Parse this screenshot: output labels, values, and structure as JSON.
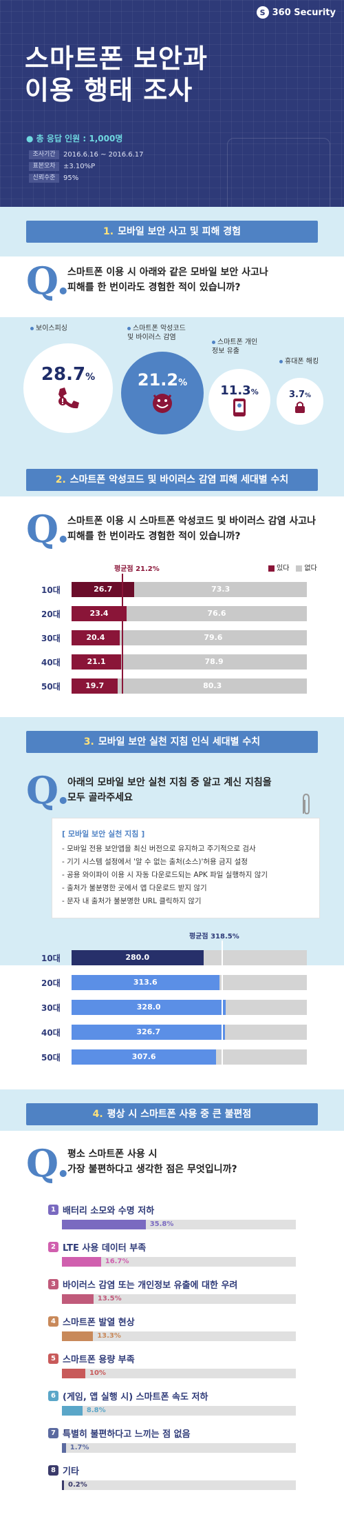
{
  "brand": "360 Security",
  "title_line1": "스마트폰 보안과",
  "title_line2": "이용 행태 조사",
  "respondents": "총 응답 인원 : 1,000명",
  "meta": [
    {
      "k": "조사기간",
      "v": "2016.6.16 ~ 2016.6.17"
    },
    {
      "k": "표본오차",
      "v": "±3.10%P"
    },
    {
      "k": "신뢰수준",
      "v": "95%"
    }
  ],
  "colors": {
    "header": "#2e3a78",
    "accent": "#4f82c4",
    "band": "#d6ecf5",
    "yes": "#8a1538",
    "no": "#c9c9c9",
    "navy": "#27306a",
    "blue": "#5b8fe6"
  },
  "s1": {
    "num": "1.",
    "title": "모바일 보안 사고 및 피해 경험",
    "q1": "스마트폰 이용 시 아래와 같은 모바일 보안 사고나",
    "q2": "피해를 한 번이라도 경험한 적이 있습니까?",
    "items": [
      {
        "label": "보이스피싱",
        "value": "28.7",
        "icon": "phone-alert-icon"
      },
      {
        "label": "스마트폰 악성코드 및 바이러스 감염",
        "value": "21.2",
        "icon": "virus-icon"
      },
      {
        "label": "스마트폰 개인정보 유출",
        "value": "11.3",
        "icon": "smartphone-icon"
      },
      {
        "label": "휴대폰 해킹",
        "value": "3.7",
        "icon": "lock-icon"
      }
    ],
    "pct": "%"
  },
  "s2": {
    "num": "2.",
    "title": "스마트폰 악성코드 및 바이러스 감염 피해 세대별 수치",
    "q1": "스마트폰 이용 시 스마트폰 악성코드 및 바이러스 감염 사고나",
    "q2": "피해를 한 번이라도 경험한 적이 있습니까?",
    "avg_label": "평균점 21.2%",
    "legend_yes": "있다",
    "legend_no": "없다"
  },
  "s3": {
    "num": "3.",
    "title": "모바일 보안 실천 지침 인식 세대별 수치",
    "q1": "아래의 모바일 보안 실천 지침 중 알고 계신 지침을",
    "q2": "모두 골라주세요",
    "guide_title": "[ 모바일 보안 실천 지침 ]",
    "guide": [
      "모바일 전용 보안앱을 최신 버전으로 유지하고 주기적으로 검사",
      "기기 시스템 설정에서 '알 수 없는 출처(소스)'허용 금지 설정",
      "공용 와이파이 이용 시 자동 다운로드되는 APK 파일 실행하지 않기",
      "출처가 불분명한 곳에서 앱 다운로드 받지 않기",
      "문자 내 출처가 불분명한 URL 클릭하지 않기"
    ],
    "avg_label": "평균점 318.5%"
  },
  "s4": {
    "num": "4.",
    "title": "평상 시 스마트폰 사용 중 큰 불편점",
    "q1": "평소 스마트폰 사용 시",
    "q2": "가장 불편하다고 생각한 점은 무엇입니까?"
  },
  "chart_data": [
    {
      "type": "bar",
      "title": "스마트폰 악성코드 및 바이러스 감염 피해 세대별 수치",
      "categories": [
        "10대",
        "20대",
        "30대",
        "40대",
        "50대"
      ],
      "series": [
        {
          "name": "있다",
          "values": [
            26.7,
            23.4,
            20.4,
            21.1,
            19.7
          ]
        },
        {
          "name": "없다",
          "values": [
            73.3,
            76.6,
            79.6,
            78.9,
            80.3
          ]
        }
      ],
      "average": 21.2,
      "stacked": true,
      "orientation": "horizontal",
      "ylim": [
        0,
        100
      ]
    },
    {
      "type": "bar",
      "title": "모바일 보안 실천 지침 인식 세대별 수치",
      "categories": [
        "10대",
        "20대",
        "30대",
        "40대",
        "50대"
      ],
      "values": [
        280.0,
        313.6,
        328.0,
        326.7,
        307.6
      ],
      "average": 318.5,
      "orientation": "horizontal",
      "ylim": [
        0,
        500
      ]
    },
    {
      "type": "bar",
      "title": "평상 시 스마트폰 사용 중 큰 불편점",
      "categories": [
        "배터리 소모와 수명 저하",
        "LTE 사용 데이터 부족",
        "바이러스 감염 또는 개인정보 유출에 대한 우려",
        "스마트폰 발열 현상",
        "스마트폰 용량 부족",
        "(게임, 앱 실행 시) 스마트폰 속도 저하",
        "특별히 불편하다고 느끼는 점 없음",
        "기타"
      ],
      "values": [
        35.8,
        16.7,
        13.5,
        13.3,
        10,
        8.8,
        1.7,
        0.2
      ],
      "labels": [
        "35.8%",
        "16.7%",
        "13.5%",
        "13.3%",
        "10%",
        "8.8%",
        "1.7%",
        "0.2%"
      ],
      "colors": [
        "#7a6ac0",
        "#d05fae",
        "#c05a7a",
        "#c8895a",
        "#c85a5a",
        "#5aa6c8",
        "#5b6aa0",
        "#3a3a6a"
      ],
      "orientation": "horizontal",
      "ylim": [
        0,
        100
      ]
    }
  ]
}
